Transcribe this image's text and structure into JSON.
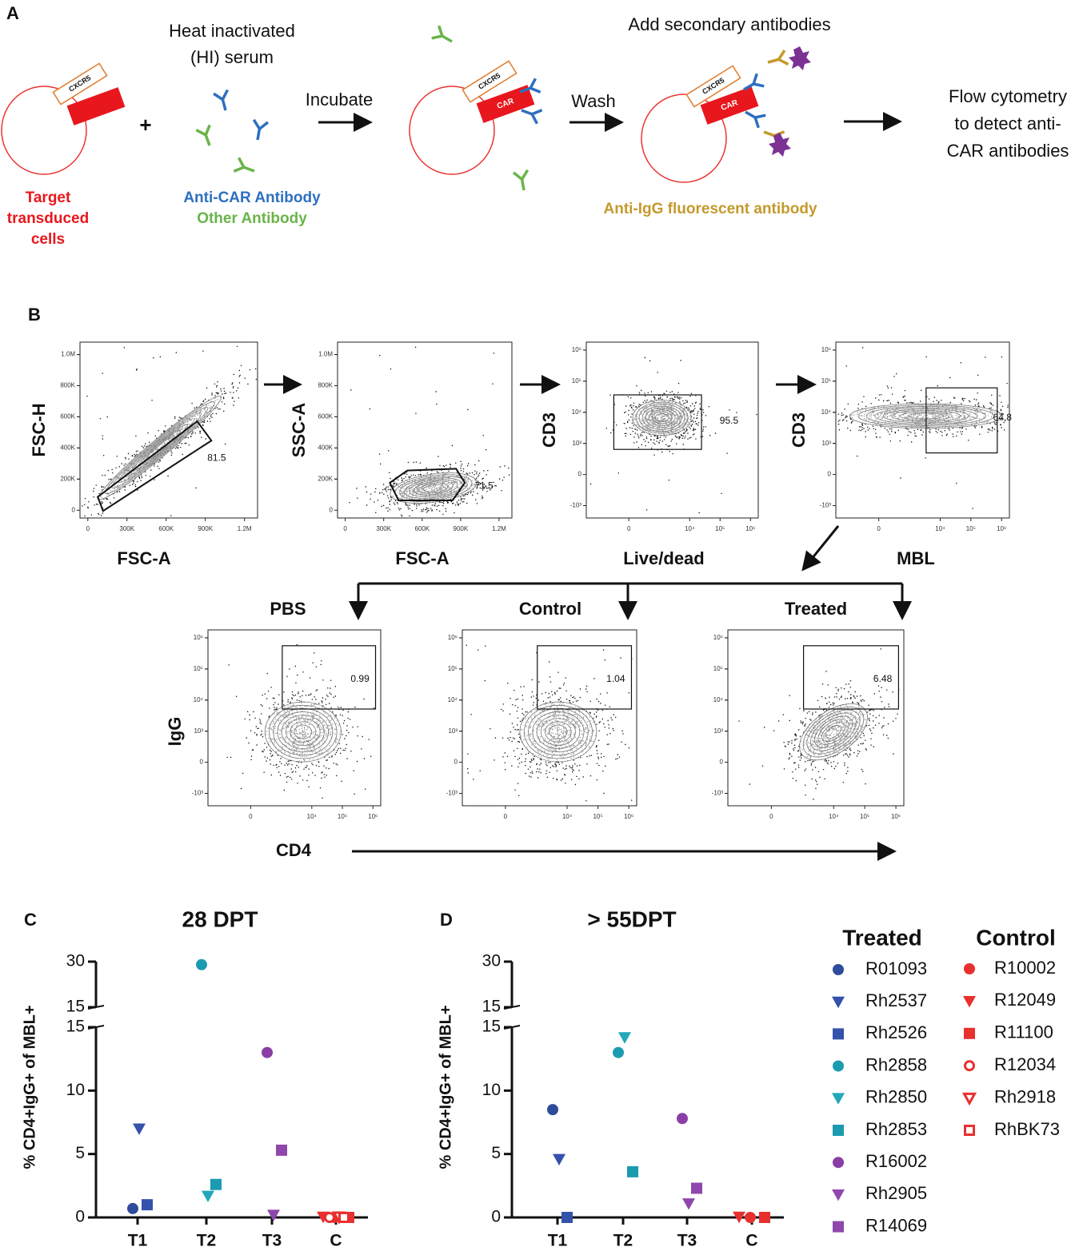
{
  "panel_a": {
    "label": "A",
    "serum": [
      "Heat inactivated",
      "(HI) serum"
    ],
    "plus": "+",
    "incubate": "Incubate",
    "wash": "Wash",
    "add_secondary": "Add secondary antibodies",
    "flow": [
      "Flow cytometry",
      "to detect anti-",
      "CAR antibodies"
    ],
    "target": [
      "Target",
      "transduced",
      "cells"
    ],
    "anti_car": "Anti-CAR Antibody",
    "other": "Other Antibody",
    "anti_igg": "Anti-IgG fluorescent antibody",
    "cxcr5": "CXCR5",
    "car": "CAR"
  },
  "panel_b": {
    "label": "B",
    "linear_xlim": [
      -60000,
      1300000
    ],
    "linear_ylim": [
      -50000,
      1080000
    ],
    "log_lim": [
      -2500,
      1800000
    ],
    "linear_yticks": [
      {
        "value": 1000000,
        "label": "1.0M"
      },
      {
        "value": 800000,
        "label": "800K"
      },
      {
        "value": 600000,
        "label": "600K"
      },
      {
        "value": 400000,
        "label": "400K"
      },
      {
        "value": 200000,
        "label": "200K"
      },
      0
    ],
    "linear_xticks": [
      0,
      {
        "value": 300000,
        "label": "300K"
      },
      {
        "value": 600000,
        "label": "600K"
      },
      {
        "value": 900000,
        "label": "900K"
      },
      {
        "value": 1200000,
        "label": "1.2M"
      }
    ],
    "log_yticks": [
      {
        "value": 1000000,
        "label": "10⁶"
      },
      {
        "value": 100000,
        "label": "10⁵"
      },
      {
        "value": 10000,
        "label": "10⁴"
      },
      {
        "value": 1000,
        "label": "10³"
      },
      0,
      {
        "value": -1000,
        "label": "-10³"
      }
    ],
    "log_xticks": [
      0,
      {
        "value": 10000,
        "label": "10⁴"
      },
      {
        "value": 100000,
        "label": "10⁵"
      },
      {
        "value": 1000000,
        "label": "10⁶"
      }
    ],
    "plots": [
      {
        "y_label": "FSC-H",
        "x_label": "FSC-A",
        "gate": 81.5,
        "axes": "linear"
      },
      {
        "y_label": "SSC-A",
        "x_label": "FSC-A",
        "gate": 71.5,
        "axes": "linear"
      },
      {
        "y_label": "CD3",
        "x_label": "Live/dead",
        "gate": 95.5,
        "axes": "log"
      },
      {
        "y_label": "CD3",
        "x_label": "MBL",
        "gate": 64.8,
        "axes": "log"
      }
    ],
    "bottom_plots": [
      {
        "title": "PBS",
        "gate": 0.99
      },
      {
        "title": "Control",
        "gate": 1.04
      },
      {
        "title": "Treated",
        "gate": 6.48
      }
    ],
    "bottom_y_label": "IgG",
    "bottom_x_label": "CD4"
  },
  "chart_data": [
    {
      "type": "scatter",
      "label": "C",
      "title": "28 DPT",
      "y_label": "% CD4+IgG+ of MBL+",
      "categories": [
        "T1",
        "T2",
        "T3",
        "C"
      ],
      "ylim": [
        0,
        15
      ],
      "yticks": [
        0,
        5,
        10,
        15
      ],
      "y_upper_lim": [
        15,
        30
      ],
      "y_upper_ticks": [
        15,
        30
      ],
      "treated": [
        0.7,
        7.0,
        1.0,
        29.0,
        1.7,
        2.6,
        13.0,
        0.2,
        5.3
      ],
      "control": [
        0.0,
        0.05,
        0.0,
        0.0,
        0.05,
        0.0
      ]
    },
    {
      "type": "scatter",
      "label": "D",
      "title": "> 55DPT",
      "y_label": "% CD4+IgG+ of MBL+",
      "categories": [
        "T1",
        "T2",
        "T3",
        "C"
      ],
      "ylim": [
        0,
        15
      ],
      "yticks": [
        0,
        5,
        10,
        15
      ],
      "y_upper_lim": [
        15,
        30
      ],
      "y_upper_ticks": [
        15,
        30
      ],
      "treated": [
        8.5,
        4.6,
        0.0,
        13.0,
        14.2,
        3.6,
        7.8,
        1.1,
        2.3
      ],
      "control": [
        0.0,
        0.05,
        0.0,
        null,
        null,
        null
      ]
    }
  ],
  "legend": {
    "treated": {
      "title": "Treated",
      "series": [
        {
          "name": "R01093",
          "color": "#2f4b9c",
          "marker": "circle",
          "filled": true,
          "category": 0
        },
        {
          "name": "Rh2537",
          "color": "#3451ab",
          "marker": "triangle",
          "filled": true,
          "category": 0
        },
        {
          "name": "Rh2526",
          "color": "#3451ab",
          "marker": "square",
          "filled": true,
          "category": 0
        },
        {
          "name": "Rh2858",
          "color": "#1b9bb0",
          "marker": "circle",
          "filled": true,
          "category": 1
        },
        {
          "name": "Rh2850",
          "color": "#22a8b8",
          "marker": "triangle",
          "filled": true,
          "category": 1
        },
        {
          "name": "Rh2853",
          "color": "#1b9bb0",
          "marker": "square",
          "filled": true,
          "category": 1
        },
        {
          "name": "R16002",
          "color": "#8a3ea6",
          "marker": "circle",
          "filled": true,
          "category": 2
        },
        {
          "name": "Rh2905",
          "color": "#9047ad",
          "marker": "triangle",
          "filled": true,
          "category": 2
        },
        {
          "name": "R14069",
          "color": "#9047ad",
          "marker": "square",
          "filled": true,
          "category": 2
        }
      ]
    },
    "control": {
      "title": "Control",
      "series": [
        {
          "name": "R10002",
          "color": "#e8302f",
          "marker": "circle",
          "filled": true,
          "category": 3
        },
        {
          "name": "R12049",
          "color": "#e8302f",
          "marker": "triangle",
          "filled": true,
          "category": 3
        },
        {
          "name": "R11100",
          "color": "#e8302f",
          "marker": "square",
          "filled": true,
          "category": 3
        },
        {
          "name": "R12034",
          "color": "#e8302f",
          "marker": "circle",
          "filled": false,
          "category": 3
        },
        {
          "name": "Rh2918",
          "color": "#e8302f",
          "marker": "triangle",
          "filled": false,
          "category": 3
        },
        {
          "name": "RhBK73",
          "color": "#e8302f",
          "marker": "square",
          "filled": false,
          "category": 3
        }
      ]
    }
  }
}
